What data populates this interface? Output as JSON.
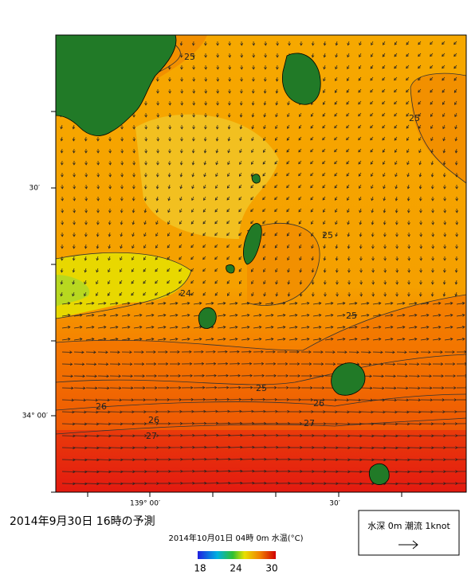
{
  "map": {
    "lat_labels": [
      "30′",
      "34° 00′"
    ],
    "lon_labels": [
      "139° 00′",
      "30′"
    ],
    "contour_labels": [
      "25",
      "25",
      "25",
      "24",
      "25",
      "25",
      "26",
      "26",
      "26",
      "27",
      "27"
    ]
  },
  "caption": {
    "title": "2014年9月30日 16時の予測",
    "subtitle": "2014年10月01日 04時 0m 水温(°C)"
  },
  "colorbar": {
    "ticks": [
      18,
      24,
      30
    ]
  },
  "legend": {
    "label": "水深 0m 潮流 1knot"
  }
}
